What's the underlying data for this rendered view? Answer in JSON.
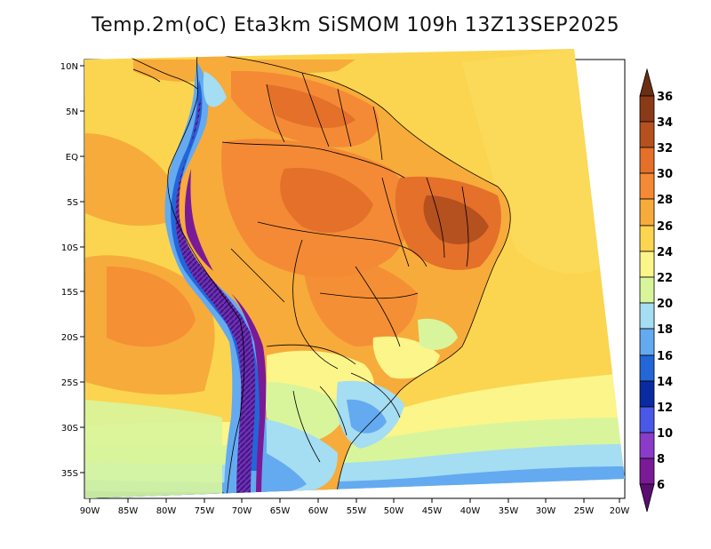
{
  "title": "Temp.2m(oC) Eta3km SiSMOM 109h 13Z13SEP2025",
  "lat_labels": [
    "10N",
    "5N",
    "EQ",
    "5S",
    "10S",
    "15S",
    "20S",
    "25S",
    "30S",
    "35S"
  ],
  "lon_labels": [
    "90W",
    "85W",
    "80W",
    "75W",
    "70W",
    "65W",
    "60W",
    "55W",
    "50W",
    "45W",
    "40W",
    "35W",
    "30W",
    "25W",
    "20W"
  ],
  "colorbar": {
    "labels": [
      "36",
      "34",
      "32",
      "30",
      "28",
      "26",
      "24",
      "22",
      "20",
      "18",
      "16",
      "14",
      "12",
      "10",
      "8",
      "6"
    ],
    "colors": {
      "above_36": "#6b2e14",
      "c34_36": "#8b3a18",
      "c32_34": "#b5501f",
      "c30_32": "#e4702a",
      "c28_30": "#f48a35",
      "c26_28": "#f7ab3a",
      "c24_26": "#fbd54f",
      "c22_24": "#fcf58a",
      "c20_22": "#d8f59c",
      "c18_20": "#a5ddf2",
      "c16_18": "#64aaf0",
      "c14_16": "#2266d8",
      "c12_14": "#0a2ba0",
      "c10_12": "#4a58e8",
      "c8_10": "#8a3cc8",
      "c6_8": "#7a1a96",
      "below_6": "#5a0e70"
    }
  }
}
